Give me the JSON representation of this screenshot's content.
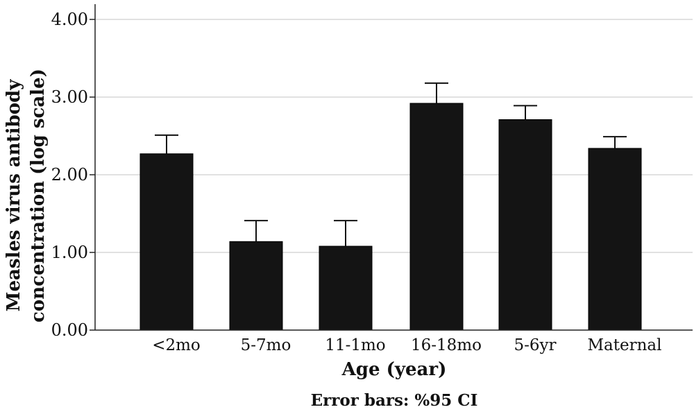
{
  "chart_data": {
    "type": "bar",
    "categories": [
      "<2mo",
      "5-7mo",
      "11-1mo",
      "16-18mo",
      "5-6yr",
      "Maternal"
    ],
    "values": [
      2.27,
      1.14,
      1.08,
      2.92,
      2.71,
      2.34
    ],
    "ci_upper": [
      2.51,
      1.41,
      1.41,
      3.18,
      2.89,
      2.49
    ],
    "ylim": [
      0,
      4
    ],
    "yticks": [
      "0.00",
      "1.00",
      "2.00",
      "3.00",
      "4.00"
    ],
    "ytick_values": [
      0,
      1,
      2,
      3,
      4
    ],
    "ylabel_line1": "Measles virus antibody",
    "ylabel_line2": "concentration (log scale)",
    "xlabel": "Age (year)",
    "note": "Error bars: %95 CI",
    "grid": true,
    "bar_color": "#141414",
    "grid_color": "#cfcfcf"
  }
}
